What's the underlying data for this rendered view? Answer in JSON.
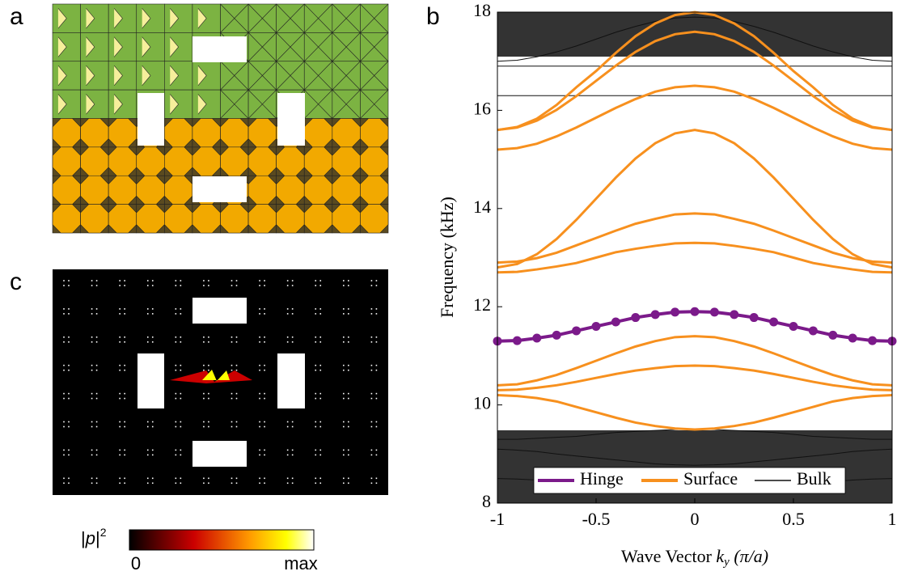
{
  "panel_labels": [
    "a",
    "b",
    "c"
  ],
  "colorbar": {
    "label_base": "|",
    "label_p": "p",
    "label_end": "|",
    "label_sup": "2",
    "min_label": "0",
    "max_label": "max"
  },
  "chart_data": {
    "type": "line",
    "ylabel": "Frequency (kHz)",
    "xlabel": {
      "prefix": "Wave Vector ",
      "k": "k",
      "sub": "y",
      "suffix": " (π/a)"
    },
    "x": [
      -1,
      -0.9,
      -0.8,
      -0.7,
      -0.6,
      -0.5,
      -0.4,
      -0.3,
      -0.2,
      -0.1,
      0,
      0.1,
      0.2,
      0.3,
      0.4,
      0.5,
      0.6,
      0.7,
      0.8,
      0.9,
      1
    ],
    "xlim": [
      -1,
      1
    ],
    "xticks": [
      -1,
      -0.5,
      0,
      0.5,
      1
    ],
    "ylim": [
      8,
      18
    ],
    "yticks": [
      8,
      10,
      12,
      14,
      16,
      18
    ],
    "series": [
      {
        "name": "Hinge",
        "color": "#7b1a8a",
        "markers": true,
        "values": [
          11.3,
          11.31,
          11.36,
          11.42,
          11.51,
          11.6,
          11.69,
          11.78,
          11.84,
          11.89,
          11.9,
          11.89,
          11.84,
          11.78,
          11.69,
          11.6,
          11.51,
          11.42,
          11.36,
          11.31,
          11.3
        ]
      },
      {
        "name": "Surface",
        "color": "#f7901e",
        "lines": [
          [
            15.6,
            15.66,
            15.83,
            16.11,
            16.47,
            16.8,
            17.17,
            17.51,
            17.77,
            17.94,
            18.0,
            17.94,
            17.77,
            17.51,
            17.17,
            16.8,
            16.47,
            16.11,
            15.83,
            15.66,
            15.6
          ],
          [
            15.6,
            15.65,
            15.79,
            16.01,
            16.29,
            16.6,
            16.91,
            17.19,
            17.41,
            17.55,
            17.6,
            17.55,
            17.41,
            17.19,
            16.91,
            16.6,
            16.29,
            16.01,
            15.79,
            15.65,
            15.6
          ],
          [
            15.2,
            15.23,
            15.32,
            15.47,
            15.65,
            15.85,
            16.05,
            16.23,
            16.38,
            16.47,
            16.5,
            16.47,
            16.38,
            16.23,
            16.05,
            15.85,
            15.65,
            15.47,
            15.32,
            15.23,
            15.2
          ],
          [
            12.8,
            12.87,
            13.07,
            13.38,
            13.77,
            14.2,
            14.63,
            15.02,
            15.33,
            15.53,
            15.6,
            15.53,
            15.33,
            15.02,
            14.63,
            14.2,
            13.77,
            13.38,
            13.07,
            12.87,
            12.8
          ],
          [
            12.9,
            12.92,
            12.99,
            13.1,
            13.25,
            13.4,
            13.55,
            13.69,
            13.79,
            13.88,
            13.9,
            13.88,
            13.79,
            13.69,
            13.55,
            13.4,
            13.25,
            13.1,
            12.99,
            12.92,
            12.9
          ],
          [
            12.7,
            12.71,
            12.76,
            12.82,
            12.89,
            13.0,
            13.11,
            13.18,
            13.24,
            13.29,
            13.3,
            13.29,
            13.24,
            13.18,
            13.11,
            13.0,
            12.89,
            12.82,
            12.76,
            12.71,
            12.7
          ],
          [
            10.4,
            10.42,
            10.5,
            10.61,
            10.75,
            10.9,
            11.05,
            11.19,
            11.3,
            11.38,
            11.4,
            11.38,
            11.3,
            11.19,
            11.05,
            10.9,
            10.75,
            10.61,
            10.5,
            10.42,
            10.4
          ],
          [
            10.3,
            10.31,
            10.35,
            10.4,
            10.47,
            10.55,
            10.63,
            10.7,
            10.75,
            10.79,
            10.8,
            10.79,
            10.75,
            10.7,
            10.63,
            10.55,
            10.47,
            10.4,
            10.35,
            10.31,
            10.3
          ],
          [
            10.2,
            10.18,
            10.14,
            10.07,
            9.96,
            9.85,
            9.74,
            9.64,
            9.57,
            9.52,
            9.5,
            9.52,
            9.57,
            9.64,
            9.74,
            9.85,
            9.96,
            10.07,
            10.14,
            10.18,
            10.2
          ]
        ]
      },
      {
        "name": "Bulk",
        "color": "#111111",
        "lines": [
          [
            17.0,
            17.02,
            17.09,
            17.19,
            17.31,
            17.45,
            17.59,
            17.71,
            17.81,
            17.88,
            17.9,
            17.88,
            17.81,
            17.71,
            17.59,
            17.45,
            17.31,
            17.19,
            17.09,
            17.02,
            17.0
          ],
          [
            16.3,
            16.3,
            16.3,
            16.3,
            16.3,
            16.3,
            16.3,
            16.3,
            16.3,
            16.3,
            16.3,
            16.3,
            16.3,
            16.3,
            16.3,
            16.3,
            16.3,
            16.3,
            16.3,
            16.3,
            16.3
          ],
          [
            16.9,
            16.9,
            16.9,
            16.9,
            16.9,
            16.9,
            16.9,
            16.9,
            16.9,
            16.9,
            16.9,
            16.9,
            16.9,
            16.9,
            16.9,
            16.9,
            16.9,
            16.9,
            16.9,
            16.9,
            16.9
          ],
          [
            9.3,
            9.3,
            9.32,
            9.34,
            9.36,
            9.4,
            9.44,
            9.46,
            9.48,
            9.5,
            9.5,
            9.5,
            9.48,
            9.46,
            9.44,
            9.4,
            9.36,
            9.34,
            9.32,
            9.3,
            9.3
          ],
          [
            9.1,
            9.08,
            9.05,
            9.0,
            8.96,
            8.92,
            8.88,
            8.84,
            8.8,
            8.78,
            8.77,
            8.78,
            8.8,
            8.84,
            8.88,
            8.92,
            8.96,
            9.0,
            9.05,
            9.08,
            9.1
          ],
          [
            8.5,
            8.49,
            8.47,
            8.44,
            8.41,
            8.38,
            8.35,
            8.33,
            8.31,
            8.3,
            8.3,
            8.3,
            8.31,
            8.33,
            8.35,
            8.38,
            8.41,
            8.44,
            8.47,
            8.49,
            8.5
          ]
        ]
      }
    ],
    "legend": "lower center"
  }
}
